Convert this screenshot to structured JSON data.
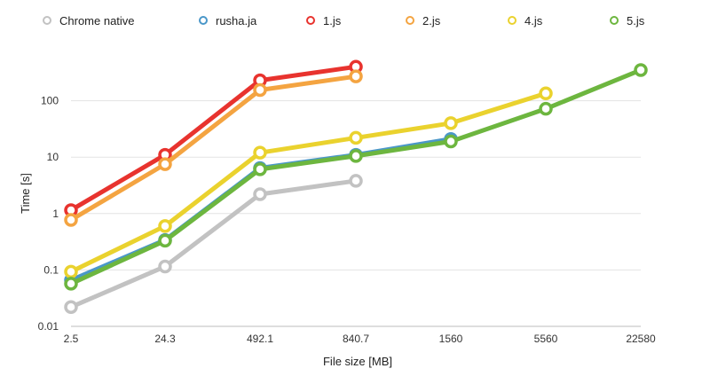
{
  "chart_data": {
    "type": "line",
    "xlabel": "File size [MB]",
    "ylabel": "Time [s]",
    "x_scale": "category",
    "y_scale": "log",
    "ylim": [
      0.01,
      1000
    ],
    "y_ticks": [
      "0.01",
      "0.1",
      "1",
      "10",
      "100"
    ],
    "grid": true,
    "legend_position": "top",
    "categories": [
      "2.5",
      "24.3",
      "492.1",
      "840.7",
      "1560",
      "5560",
      "22580"
    ],
    "series": [
      {
        "name": "Chrome native",
        "color": "#c2c2c2",
        "values": [
          0.022,
          0.115,
          2.2,
          3.8,
          null,
          null,
          null
        ]
      },
      {
        "name": "rusha.ja",
        "color": "#4a97c9",
        "values": [
          0.066,
          0.34,
          6.4,
          11,
          21,
          null,
          null
        ]
      },
      {
        "name": "1.js",
        "color": "#e8332e",
        "values": [
          1.15,
          11,
          230,
          400,
          null,
          null,
          null
        ]
      },
      {
        "name": "2.js",
        "color": "#f4a441",
        "values": [
          0.77,
          7.5,
          155,
          270,
          null,
          null,
          null
        ]
      },
      {
        "name": "4.js",
        "color": "#ead22e",
        "values": [
          0.093,
          0.6,
          12,
          22,
          40,
          135,
          null
        ]
      },
      {
        "name": "5.js",
        "color": "#6db63f",
        "values": [
          0.057,
          0.33,
          6.1,
          10.5,
          19,
          72,
          350
        ]
      }
    ]
  }
}
